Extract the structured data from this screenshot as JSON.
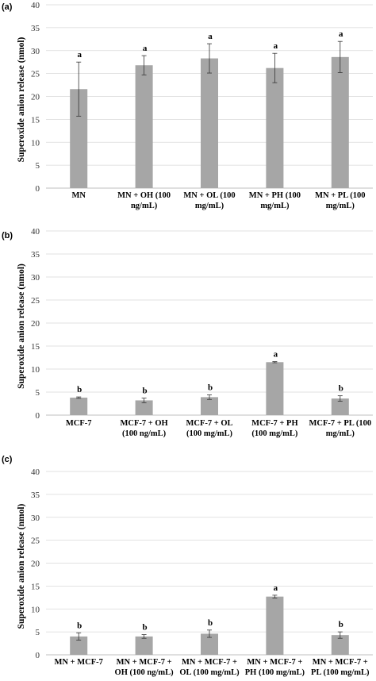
{
  "chart_data": [
    {
      "type": "bar",
      "panel_label": "(a)",
      "ylabel": "Superoxide anion release (nmol)",
      "ylim": [
        0,
        40
      ],
      "yticks": [
        "0",
        "5",
        "10",
        "15",
        "20",
        "25",
        "30",
        "35",
        "40"
      ],
      "grid": true,
      "bar_color": "#a6a6a6",
      "categories": [
        [
          "MN"
        ],
        [
          "MN + OH (100",
          "ng/mL)"
        ],
        [
          "MN + OL (100",
          "mg/mL)"
        ],
        [
          "MN + PH (100",
          "mg/mL)"
        ],
        [
          "MN + PL  (100",
          "mg/mL)"
        ]
      ],
      "values": [
        21.6,
        26.8,
        28.3,
        26.2,
        28.6
      ],
      "errors": [
        5.9,
        2.1,
        3.2,
        3.2,
        3.4
      ],
      "significance": [
        "a",
        "a",
        "a",
        "a",
        "a"
      ]
    },
    {
      "type": "bar",
      "panel_label": "(b)",
      "ylabel": "Superoxide anion release (nmol)",
      "ylim": [
        0,
        40
      ],
      "yticks": [
        "0",
        "5",
        "10",
        "15",
        "20",
        "25",
        "30",
        "35",
        "40"
      ],
      "grid": true,
      "bar_color": "#a6a6a6",
      "categories": [
        [
          "MCF-7"
        ],
        [
          "MCF-7 + OH",
          "(100 ng/mL)"
        ],
        [
          "MCF-7 + OL",
          "(100 mg/mL)"
        ],
        [
          "MCF-7 + PH",
          "(100 mg/mL)"
        ],
        [
          "MCF-7 + PL (100",
          "mg/mL)"
        ]
      ],
      "values": [
        3.8,
        3.2,
        3.9,
        11.5,
        3.6
      ],
      "errors": [
        0.15,
        0.5,
        0.5,
        0.12,
        0.6
      ],
      "significance": [
        "b",
        "b",
        "b",
        "a",
        "b"
      ]
    },
    {
      "type": "bar",
      "panel_label": "(c)",
      "ylabel": "Superoxide anion release (nmol)",
      "ylim": [
        0,
        40
      ],
      "yticks": [
        "0",
        "5",
        "10",
        "15",
        "20",
        "25",
        "30",
        "35",
        "40"
      ],
      "grid": true,
      "bar_color": "#a6a6a6",
      "categories": [
        [
          "MN + MCF-7"
        ],
        [
          "MN + MCF-7 +",
          "OH (100 ng/mL)"
        ],
        [
          "MN + MCF-7 +",
          "OL (100 mg/mL)"
        ],
        [
          "MN + MCF-7 +",
          "PH (100 mg/mL)"
        ],
        [
          "MN + MCF-7 +",
          "PL (100 mg/mL)"
        ]
      ],
      "values": [
        4.0,
        4.0,
        4.6,
        12.7,
        4.3
      ],
      "errors": [
        0.8,
        0.4,
        0.8,
        0.3,
        0.7
      ],
      "significance": [
        "b",
        "b",
        "b",
        "a",
        "b"
      ]
    }
  ]
}
